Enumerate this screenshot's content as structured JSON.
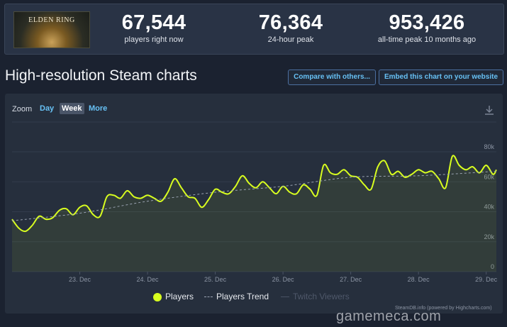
{
  "header": {
    "logo_text": "ELDEN RING",
    "stats": [
      {
        "value": "67,544",
        "label": "players right now"
      },
      {
        "value": "76,364",
        "label": "24-hour peak"
      },
      {
        "value": "953,426",
        "label": "all-time peak 10 months ago"
      }
    ]
  },
  "section": {
    "title": "High-resolution Steam charts",
    "compare_label": "Compare with others...",
    "embed_label": "Embed this chart on your website"
  },
  "zoom": {
    "label": "Zoom",
    "options": [
      "Day",
      "Week",
      "More"
    ],
    "selected": "Week"
  },
  "colors": {
    "players": "#d9ff1f",
    "trend": "#9aa3b2",
    "twitch": "#4a5364",
    "link": "#67c1f5"
  },
  "icons": {
    "download": "download-icon"
  },
  "chart_data": {
    "type": "line",
    "x_tick_labels": [
      "23. Dec",
      "24. Dec",
      "25. Dec",
      "26. Dec",
      "27. Dec",
      "28. Dec",
      "29. Dec"
    ],
    "y_tick_labels": [
      "0",
      "20k",
      "40k",
      "60k",
      "80k"
    ],
    "ylim": [
      0,
      80000
    ],
    "x_range_days": [
      22.0,
      29.15
    ],
    "grid": true,
    "legend_placement": "bottom-center",
    "series": [
      {
        "name": "Players",
        "x": [
          22.0,
          22.1,
          22.2,
          22.3,
          22.4,
          22.5,
          22.6,
          22.7,
          22.8,
          22.9,
          23.0,
          23.1,
          23.2,
          23.3,
          23.4,
          23.5,
          23.6,
          23.7,
          23.8,
          23.9,
          24.0,
          24.1,
          24.2,
          24.3,
          24.4,
          24.5,
          24.6,
          24.7,
          24.8,
          24.9,
          25.0,
          25.1,
          25.2,
          25.3,
          25.4,
          25.5,
          25.6,
          25.7,
          25.8,
          25.9,
          26.0,
          26.1,
          26.2,
          26.3,
          26.4,
          26.5,
          26.6,
          26.7,
          26.8,
          26.9,
          27.0,
          27.1,
          27.2,
          27.3,
          27.4,
          27.5,
          27.6,
          27.7,
          27.8,
          27.9,
          28.0,
          28.1,
          28.2,
          28.3,
          28.4,
          28.5,
          28.6,
          28.7,
          28.8,
          28.9,
          29.0,
          29.1,
          29.15
        ],
        "values": [
          35000,
          29000,
          27000,
          31000,
          37000,
          35000,
          36000,
          41000,
          42000,
          38000,
          43000,
          44000,
          38000,
          37000,
          50000,
          51000,
          49000,
          54000,
          50000,
          49000,
          51000,
          49000,
          47000,
          53000,
          62000,
          56000,
          50000,
          49000,
          43000,
          48000,
          55000,
          53000,
          52000,
          57000,
          64000,
          59000,
          56000,
          60000,
          56000,
          52000,
          57000,
          53000,
          52000,
          58000,
          55000,
          51000,
          71000,
          66000,
          65000,
          68000,
          64000,
          63000,
          58000,
          55000,
          70000,
          74000,
          65000,
          67000,
          63000,
          65000,
          68000,
          66000,
          67000,
          62000,
          56000,
          77000,
          71000,
          68000,
          70000,
          66000,
          71000,
          65000,
          68000
        ]
      },
      {
        "name": "Players Trend",
        "x": [
          22.0,
          23.0,
          24.0,
          25.0,
          26.0,
          27.0,
          28.0,
          29.15
        ],
        "values": [
          34000,
          39000,
          47000,
          53000,
          57000,
          63000,
          64000,
          67000
        ]
      },
      {
        "name": "Twitch Viewers",
        "x": [],
        "values": []
      }
    ]
  },
  "footer": {
    "credit": "SteamDB.info (powered by Highcharts.com)",
    "watermark": "gamemeca.com"
  }
}
